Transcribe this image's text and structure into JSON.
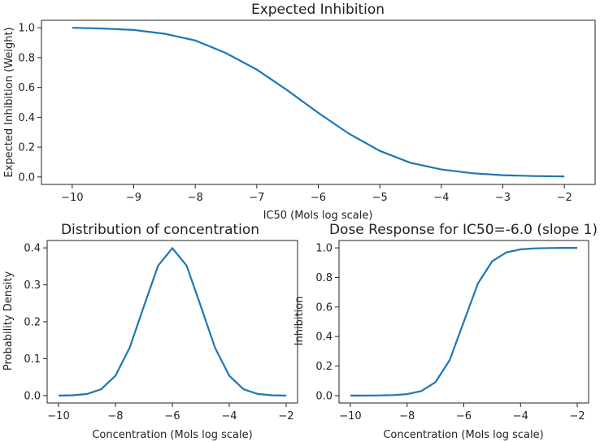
{
  "chart_data": [
    {
      "type": "line",
      "title": "Expected Inhibition",
      "xlabel": "IC50 (Mols log scale)",
      "ylabel": "Expected Inhibition (Weight)",
      "xlim": [
        -10.5,
        -1.5
      ],
      "ylim": [
        -0.05,
        1.05
      ],
      "xticks": [
        -10,
        -9,
        -8,
        -7,
        -6,
        -5,
        -4,
        -3,
        -2
      ],
      "xtick_labels": [
        "−10",
        "−9",
        "−8",
        "−7",
        "−6",
        "−5",
        "−4",
        "−3",
        "−2"
      ],
      "yticks": [
        0.0,
        0.2,
        0.4,
        0.6,
        0.8,
        1.0
      ],
      "ytick_labels": [
        "0.0",
        "0.2",
        "0.4",
        "0.6",
        "0.8",
        "1.0"
      ],
      "series": [
        {
          "name": "expected inhibition",
          "color": "#1f77b4",
          "x": [
            -10,
            -9.5,
            -9,
            -8.5,
            -8,
            -7.5,
            -7,
            -6.5,
            -6,
            -5.5,
            -5,
            -4.5,
            -4,
            -3.5,
            -3,
            -2.5,
            -2
          ],
          "y": [
            1.0,
            0.995,
            0.985,
            0.96,
            0.915,
            0.83,
            0.72,
            0.58,
            0.43,
            0.29,
            0.175,
            0.095,
            0.05,
            0.025,
            0.012,
            0.006,
            0.004
          ]
        }
      ]
    },
    {
      "type": "line",
      "title": "Distribution of concentration",
      "xlabel": "Concentration (Mols log scale)",
      "ylabel": "Probability Density",
      "xlim": [
        -10.4,
        -1.6
      ],
      "ylim": [
        -0.02,
        0.42
      ],
      "xticks": [
        -10,
        -8,
        -6,
        -4,
        -2
      ],
      "xtick_labels": [
        "−10",
        "−8",
        "−6",
        "−4",
        "−2"
      ],
      "yticks": [
        0.0,
        0.1,
        0.2,
        0.3,
        0.4
      ],
      "ytick_labels": [
        "0.0",
        "0.1",
        "0.2",
        "0.3",
        "0.4"
      ],
      "series": [
        {
          "name": "probability density",
          "color": "#1f77b4",
          "x": [
            -10,
            -9.5,
            -9,
            -8.5,
            -8,
            -7.5,
            -7,
            -6.5,
            -6,
            -5.5,
            -5,
            -4.5,
            -4,
            -3.5,
            -3,
            -2.5,
            -2
          ],
          "y": [
            0.0001,
            0.0009,
            0.0044,
            0.0175,
            0.054,
            0.1295,
            0.242,
            0.352,
            0.399,
            0.352,
            0.242,
            0.1295,
            0.054,
            0.0175,
            0.0044,
            0.0009,
            0.0001
          ]
        }
      ]
    },
    {
      "type": "line",
      "title": "Dose Response for IC50=-6.0 (slope 1)",
      "xlabel": "Concentration (Mols log scale)",
      "ylabel": "Inhibition",
      "xlim": [
        -10.4,
        -1.6
      ],
      "ylim": [
        -0.05,
        1.05
      ],
      "xticks": [
        -10,
        -8,
        -6,
        -4,
        -2
      ],
      "xtick_labels": [
        "−10",
        "−8",
        "−6",
        "−4",
        "−2"
      ],
      "yticks": [
        0.0,
        0.2,
        0.4,
        0.6,
        0.8,
        1.0
      ],
      "ytick_labels": [
        "0.0",
        "0.2",
        "0.4",
        "0.6",
        "0.8",
        "1.0"
      ],
      "series": [
        {
          "name": "dose response",
          "color": "#1f77b4",
          "x": [
            -10,
            -9.5,
            -9,
            -8.5,
            -8,
            -7.5,
            -7,
            -6.5,
            -6,
            -5.5,
            -5,
            -4.5,
            -4,
            -3.5,
            -3,
            -2.5,
            -2
          ],
          "y": [
            0.0001,
            0.0003,
            0.001,
            0.0032,
            0.0099,
            0.0307,
            0.0909,
            0.2403,
            0.5,
            0.7597,
            0.9091,
            0.9693,
            0.9901,
            0.9968,
            0.999,
            0.9997,
            0.9999
          ]
        }
      ]
    }
  ]
}
